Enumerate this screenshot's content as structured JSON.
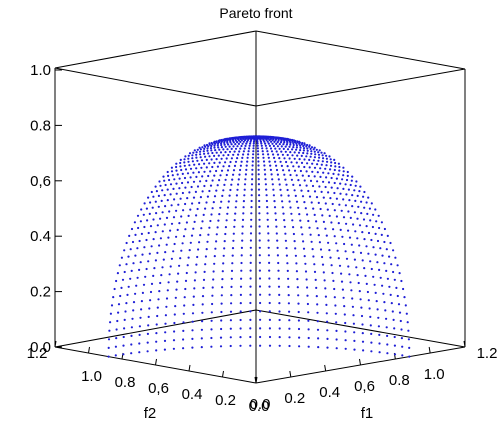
{
  "chart_data": {
    "type": "scatter3d",
    "title": "Pareto front",
    "xlabel": "f1",
    "ylabel": "f2",
    "zlabel": "",
    "xlim": [
      0,
      1.2
    ],
    "ylim": [
      0,
      1.2
    ],
    "zlim": [
      0,
      1.0
    ],
    "x_ticks": [
      "0.0",
      "0.2",
      "0.4",
      "0,6",
      "0.8",
      "1.0",
      "1.2"
    ],
    "y_ticks": [
      "1.2",
      "1.0",
      "0.8",
      "0,6",
      "0.4",
      "0.2",
      "0.0"
    ],
    "z_ticks": [
      "0.0",
      "0.2",
      "0.4",
      "0,6",
      "0.8",
      "1.0"
    ],
    "grid": false,
    "legend": "none",
    "marker_color": "#1f1fd6",
    "series": [
      {
        "surface": "f1^2 + f2^2 + f3^2 = 0.78 (first octant)",
        "radius": 0.88,
        "f3_range": [
          0,
          0.88
        ],
        "f1_range": [
          0,
          0.88
        ],
        "f2_range": [
          0,
          0.88
        ]
      }
    ]
  }
}
